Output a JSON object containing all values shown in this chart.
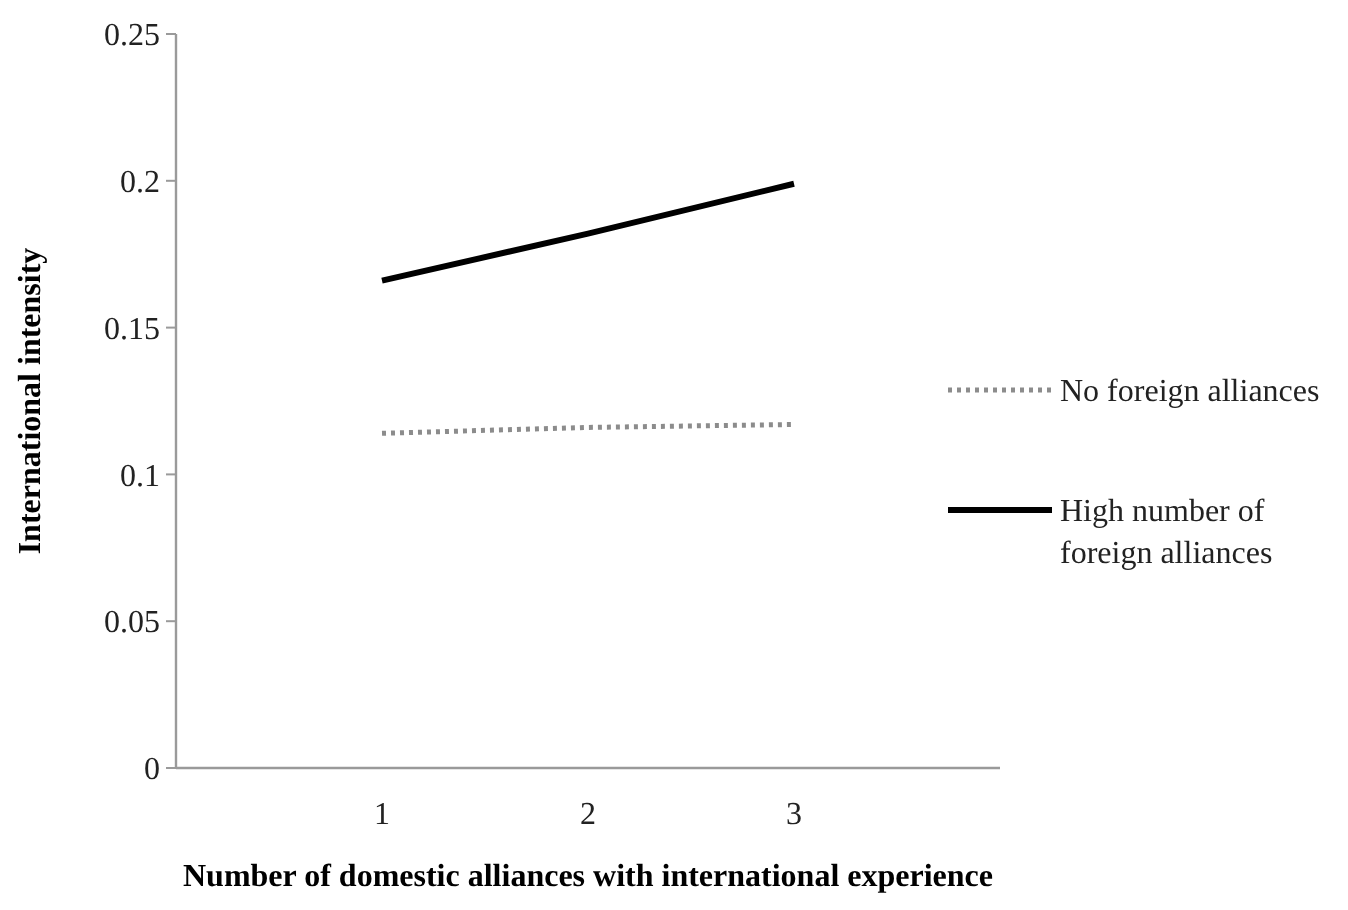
{
  "chart_data": {
    "type": "line",
    "xlabel": "Number of domestic alliances with international experience",
    "ylabel": "International intensity",
    "x": [
      1,
      2,
      3
    ],
    "xlim": [
      0,
      4
    ],
    "xticks": [
      1,
      2,
      3
    ],
    "ylim": [
      0,
      0.25
    ],
    "yticks": [
      0,
      0.05,
      0.1,
      0.15,
      0.2,
      0.25
    ],
    "grid": false,
    "legend": "right",
    "marker": "none",
    "series": [
      {
        "name": "No foreign alliances",
        "color": "#8c8c8c",
        "line_style": "dotted",
        "values": [
          0.114,
          0.116,
          0.117
        ]
      },
      {
        "name": "High number of foreign alliances",
        "color": "#000000",
        "line_style": "solid",
        "values": [
          0.166,
          0.182,
          0.199
        ]
      }
    ]
  }
}
